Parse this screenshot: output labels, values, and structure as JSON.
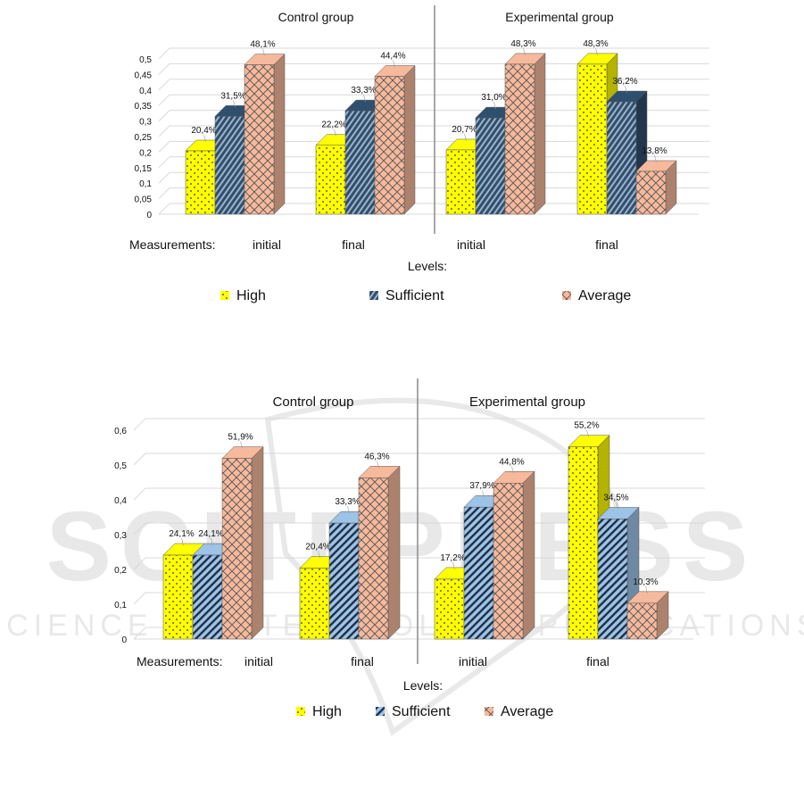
{
  "legend": [
    {
      "name": "High",
      "pattern": "dots",
      "color": "#ffff00"
    },
    {
      "name": "Sufficient",
      "pattern": "stripes",
      "color": "#3d5a80"
    },
    {
      "name": "Average",
      "pattern": "lattice",
      "color": "#f6b99c"
    }
  ],
  "chart_data": [
    {
      "type": "bar",
      "yticks": [
        "0",
        "0,05",
        "0,1",
        "0,15",
        "0,2",
        "0,25",
        "0,3",
        "0,35",
        "0,4",
        "0,45",
        "0,5"
      ],
      "ylim": [
        0,
        0.5
      ],
      "measurements_label": "Measurements:",
      "levels_label": "Levels:",
      "groups": [
        {
          "title": "Control group",
          "categories": [
            "initial",
            "final"
          ],
          "series": [
            {
              "name": "High",
              "values": [
                0.204,
                0.222
              ],
              "labels": [
                "20,4%",
                "22,2%"
              ]
            },
            {
              "name": "Sufficient",
              "values": [
                0.315,
                0.333
              ],
              "labels": [
                "31,5%",
                "33,3%"
              ]
            },
            {
              "name": "Average",
              "values": [
                0.481,
                0.444
              ],
              "labels": [
                "48,1%",
                "44,4%"
              ]
            }
          ]
        },
        {
          "title": "Experimental  group",
          "categories": [
            "initial",
            "final"
          ],
          "series": [
            {
              "name": "High",
              "values": [
                0.207,
                0.483
              ],
              "labels": [
                "20,7%",
                "48,3%"
              ]
            },
            {
              "name": "Sufficient",
              "values": [
                0.31,
                0.362
              ],
              "labels": [
                "31,0%",
                "36,2%"
              ]
            },
            {
              "name": "Average",
              "values": [
                0.483,
                0.138
              ],
              "labels": [
                "48,3%",
                "13,8%"
              ]
            }
          ]
        }
      ],
      "legend_entries": [
        "High",
        "Sufficient",
        "Average"
      ]
    },
    {
      "type": "bar",
      "yticks": [
        "0",
        "0,1",
        "0,2",
        "0,3",
        "0,4",
        "0,5",
        "0,6"
      ],
      "ylim": [
        0,
        0.6
      ],
      "measurements_label": "Measurements:",
      "levels_label": "Levels:",
      "groups": [
        {
          "title": "Control group",
          "categories": [
            "initial",
            "final"
          ],
          "series": [
            {
              "name": "High",
              "values": [
                0.241,
                0.204
              ],
              "labels": [
                "24,1%",
                "20,4%"
              ]
            },
            {
              "name": "Sufficient",
              "values": [
                0.241,
                0.333
              ],
              "labels": [
                "24,1%",
                "33,3%"
              ]
            },
            {
              "name": "Average",
              "values": [
                0.519,
                0.463
              ],
              "labels": [
                "51,9%",
                "46,3%"
              ]
            }
          ]
        },
        {
          "title": "Experimental  group",
          "categories": [
            "initial",
            "final"
          ],
          "series": [
            {
              "name": "High",
              "values": [
                0.172,
                0.552
              ],
              "labels": [
                "17,2%",
                "55,2%"
              ]
            },
            {
              "name": "Sufficient",
              "values": [
                0.379,
                0.345
              ],
              "labels": [
                "37,9%",
                "34,5%"
              ]
            },
            {
              "name": "Average",
              "values": [
                0.448,
                0.103
              ],
              "labels": [
                "44,8%",
                "10,3%"
              ]
            }
          ]
        }
      ],
      "legend_entries": [
        "High",
        "Sufficient",
        "Average"
      ]
    }
  ]
}
